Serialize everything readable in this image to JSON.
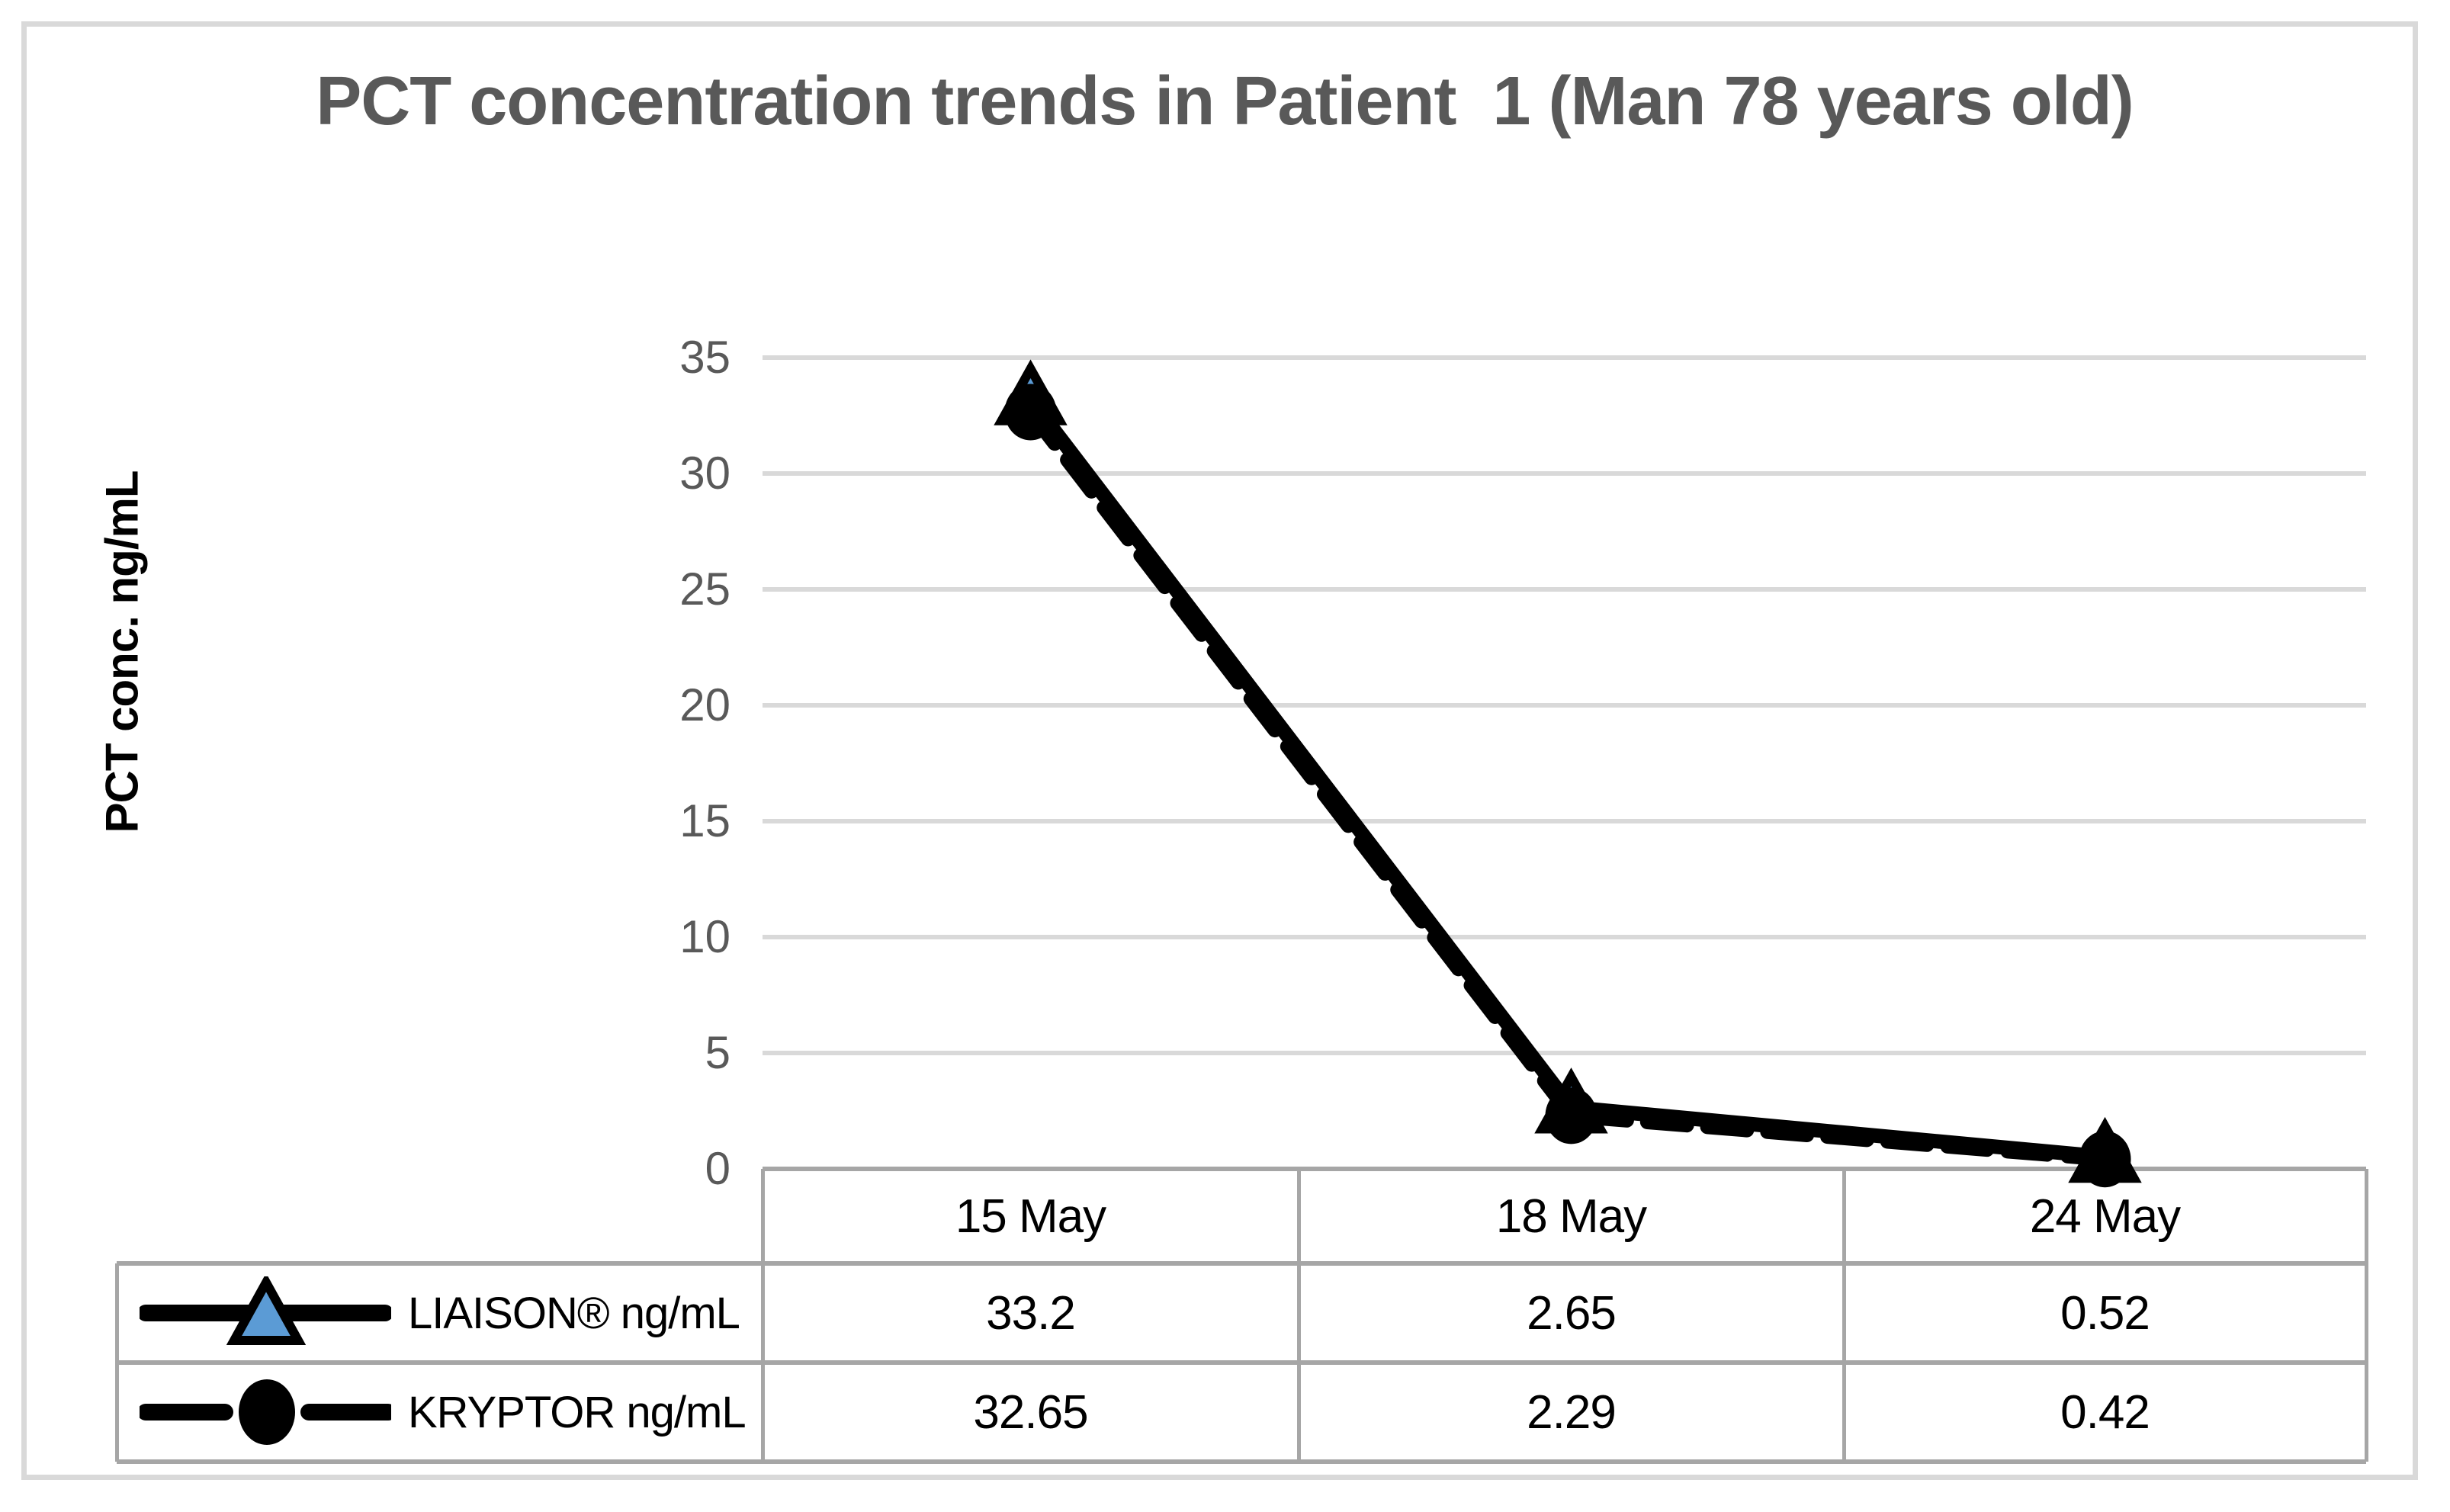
{
  "title": "PCT concentration trends in Patient  1 (Man 78 years old)",
  "y_axis": {
    "title": "PCT conc. ng/mL",
    "ticks": [
      35,
      30,
      25,
      20,
      15,
      10,
      5,
      0
    ]
  },
  "table": {
    "columns": [
      "15 May",
      "18 May",
      "24 May"
    ],
    "rows": [
      {
        "label": "LIAISON® ng/mL",
        "marker": "triangle",
        "values": [
          "33.2",
          "2.65",
          "0.52"
        ]
      },
      {
        "label": "KRYPTOR ng/mL",
        "marker": "circle",
        "values": [
          "32.65",
          "2.29",
          "0.42"
        ]
      }
    ]
  },
  "colors": {
    "title_text": "#595959",
    "tick_text": "#595959",
    "gridline": "#d9d9d9",
    "table_border": "#a6a6a6",
    "frame_border": "#d9d9d9",
    "series_line": "#000000",
    "triangle_fill": "#5b9bd5",
    "circle_fill": "#000000"
  },
  "chart_data": {
    "type": "line",
    "categories": [
      "15 May",
      "18 May",
      "24 May"
    ],
    "series": [
      {
        "name": "LIAISON® ng/mL",
        "values": [
          33.2,
          2.65,
          0.52
        ],
        "line_style": "solid",
        "marker": "triangle",
        "color": "#000000",
        "marker_fill": "#5b9bd5"
      },
      {
        "name": "KRYPTOR ng/mL",
        "values": [
          32.65,
          2.29,
          0.42
        ],
        "line_style": "dashed",
        "marker": "circle",
        "color": "#000000",
        "marker_fill": "#000000"
      }
    ],
    "title": "PCT concentration trends in Patient  1 (Man 78 years old)",
    "xlabel": "",
    "ylabel": "PCT conc. ng/mL",
    "ylim": [
      0,
      35
    ],
    "ytick_step": 5,
    "grid": "horizontal-only",
    "legend_position": "table-left-column"
  }
}
